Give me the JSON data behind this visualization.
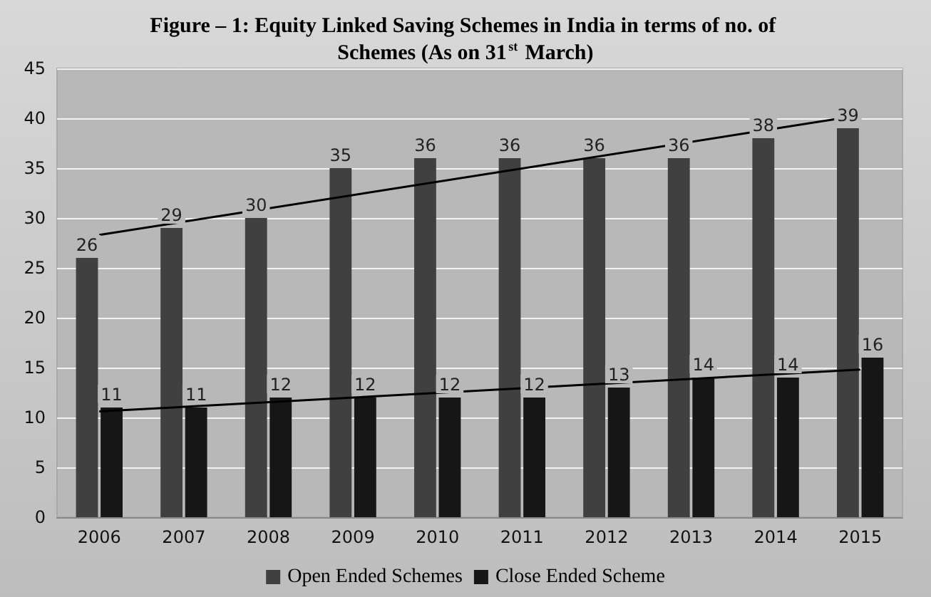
{
  "chart_data": {
    "type": "bar",
    "title": "Figure – 1: Equity Linked Saving Schemes in India in terms of no. of Schemes (As on 31$^{st}$ March)",
    "categories": [
      "2006",
      "2007",
      "2008",
      "2009",
      "2010",
      "2011",
      "2012",
      "2013",
      "2014",
      "2015"
    ],
    "series": [
      {
        "name": "Open Ended Schemes",
        "color": "#404040",
        "values": [
          26,
          29,
          30,
          35,
          36,
          36,
          36,
          36,
          38,
          39
        ],
        "value_labels": [
          "26",
          "29",
          "30",
          "35",
          "36",
          "36",
          "36",
          "36",
          "38",
          "39"
        ]
      },
      {
        "name": "Close Ended Scheme",
        "color": "#161616",
        "values": [
          11,
          11,
          12,
          12,
          12,
          12,
          13,
          14,
          14,
          16
        ],
        "value_labels": [
          "11",
          "11",
          "12",
          "12",
          "12",
          "12",
          "13",
          "14",
          "14",
          "16"
        ]
      },
      {
        "type": "line",
        "color": "#000000",
        "values": [
          28.3,
          null,
          null,
          null,
          null,
          null,
          null,
          null,
          null,
          40.3
        ]
      },
      {
        "type": "line",
        "color": "#000000",
        "values": [
          10.6,
          null,
          null,
          null,
          null,
          null,
          null,
          null,
          null,
          14.8
        ]
      }
    ],
    "ylim": [
      0,
      45
    ],
    "yticks": [
      0,
      5,
      10,
      15,
      20,
      25,
      30,
      35,
      40,
      45
    ],
    "grid": "y",
    "legend": "bottom"
  }
}
